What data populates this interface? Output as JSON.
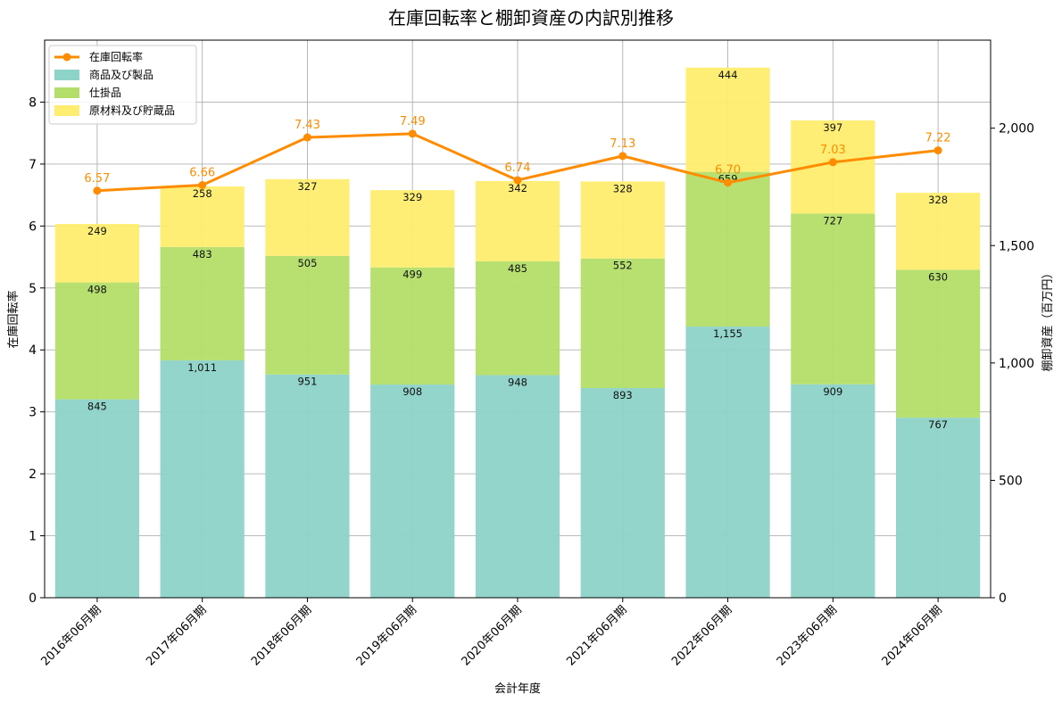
{
  "chart_data": {
    "type": "bar",
    "stacked": true,
    "title": "在庫回転率と棚卸資産の内訳別推移",
    "xlabel": "会計年度",
    "ylabel_left": "在庫回転率",
    "ylabel_right": "棚卸資産（百万円）",
    "ylim_left": [
      0,
      9
    ],
    "ylim_right": [
      0,
      2375
    ],
    "yticks_left": [
      "0",
      "1",
      "2",
      "3",
      "4",
      "5",
      "6",
      "7",
      "8"
    ],
    "yticks_right": [
      "0",
      "500",
      "1,000",
      "1,500",
      "2,000"
    ],
    "grid": true,
    "legend_position": "top-left",
    "categories": [
      "2016年06月期",
      "2017年06月期",
      "2018年06月期",
      "2019年06月期",
      "2020年06月期",
      "2021年06月期",
      "2022年06月期",
      "2023年06月期",
      "2024年06月期"
    ],
    "series": [
      {
        "name": "商品及び製品",
        "axis": "right",
        "color": "#8dd3c7",
        "values": [
          845,
          1011,
          951,
          908,
          948,
          893,
          1155,
          909,
          767
        ],
        "labels": [
          "845",
          "1,011",
          "951",
          "908",
          "948",
          "893",
          "1,155",
          "909",
          "767"
        ]
      },
      {
        "name": "仕掛品",
        "axis": "right",
        "color": "#b3de69",
        "values": [
          498,
          483,
          505,
          499,
          485,
          552,
          659,
          727,
          630
        ],
        "labels": [
          "498",
          "483",
          "505",
          "499",
          "485",
          "552",
          "659",
          "727",
          "630"
        ]
      },
      {
        "name": "原材料及び貯蔵品",
        "axis": "right",
        "color": "#ffed6f",
        "values": [
          249,
          258,
          327,
          329,
          342,
          328,
          444,
          397,
          328
        ],
        "labels": [
          "249",
          "258",
          "327",
          "329",
          "342",
          "328",
          "444",
          "397",
          "328"
        ]
      }
    ],
    "line_series": {
      "name": "在庫回転率",
      "type": "line",
      "axis": "left",
      "color": "#ff8c00",
      "values": [
        6.57,
        6.66,
        7.43,
        7.49,
        6.74,
        7.13,
        6.7,
        7.03,
        7.22
      ],
      "labels": [
        "6.57",
        "6.66",
        "7.43",
        "7.49",
        "6.74",
        "7.13",
        "6.70",
        "7.03",
        "7.22"
      ]
    }
  }
}
